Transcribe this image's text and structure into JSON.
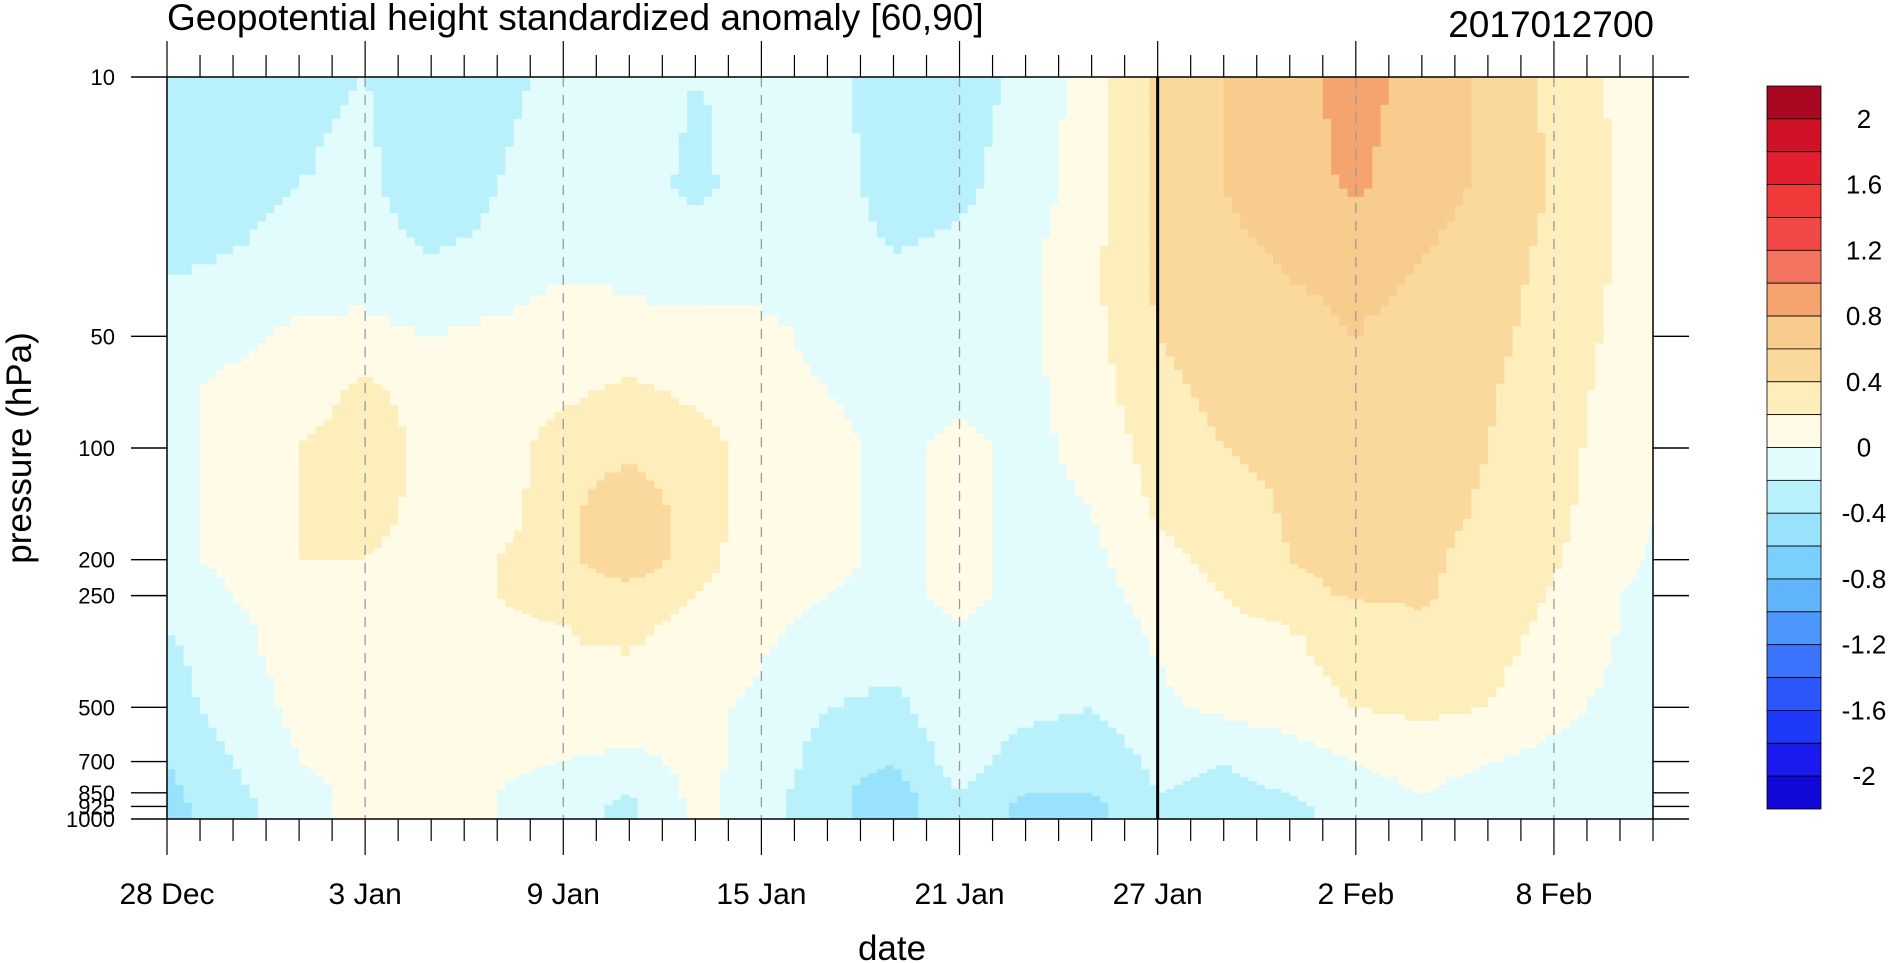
{
  "chart_data": {
    "type": "heatmap",
    "subtype": "filled-contour time-pressure cross-section",
    "title": "Geopotential height standardized anomaly [60,90]",
    "title_right": "2017012700",
    "xlabel": "date",
    "ylabel": "pressure (hPa)",
    "x_ticks": [
      "28 Dec",
      "3 Jan",
      "9 Jan",
      "15 Jan",
      "21 Jan",
      "27 Jan",
      "2 Feb",
      "8 Feb"
    ],
    "x_tick_days": [
      0,
      6,
      12,
      18,
      24,
      30,
      36,
      42
    ],
    "x_range_days": [
      0,
      45
    ],
    "y_ticks": [
      "10",
      "50",
      "100",
      "200",
      "250",
      "500",
      "700",
      "850",
      "925",
      "1000"
    ],
    "y_tick_values": [
      10,
      50,
      100,
      200,
      250,
      500,
      700,
      850,
      925,
      1000
    ],
    "y_range": [
      1000,
      10
    ],
    "y_scale": "log",
    "y_inverted": true,
    "vertical_marker_date": "27 Jan",
    "vertical_marker_day": 30,
    "colorbar": {
      "levels": [
        -2.2,
        -2.0,
        -1.8,
        -1.6,
        -1.4,
        -1.2,
        -1.0,
        -0.8,
        -0.6,
        -0.4,
        -0.2,
        0.0,
        0.2,
        0.4,
        0.6,
        0.8,
        1.0,
        1.2,
        1.4,
        1.6,
        1.8,
        2.0,
        2.2
      ],
      "labels": [
        "2",
        "1.6",
        "1.2",
        "0.8",
        "0.4",
        "0",
        "-0.4",
        "-0.8",
        "-1.2",
        "-1.6",
        "-2"
      ],
      "label_values": [
        2.0,
        1.6,
        1.2,
        0.8,
        0.4,
        0.0,
        -0.4,
        -0.8,
        -1.2,
        -1.6,
        -2.0
      ],
      "colors": [
        "#1208d8",
        "#1a1af0",
        "#1e3af8",
        "#2c55fa",
        "#3a74fc",
        "#4c96fc",
        "#5fb4fa",
        "#78d0fb",
        "#98e2fb",
        "#b8f0fc",
        "#e2fbfc",
        "#fffbe6",
        "#fdeebc",
        "#fbd99c",
        "#f8cc8c",
        "#f6a46e",
        "#f3745e",
        "#f34848",
        "#f23a3a",
        "#e31e2e",
        "#d01226",
        "#a80822"
      ]
    },
    "x_days": [
      0,
      2,
      4,
      6,
      8,
      10,
      12,
      14,
      16,
      18,
      20,
      22,
      24,
      26,
      28,
      30,
      32,
      34,
      36,
      38,
      40,
      42,
      44,
      45
    ],
    "y_pressure": [
      10,
      20,
      30,
      50,
      70,
      100,
      150,
      200,
      250,
      300,
      500,
      700,
      850,
      925,
      1000
    ],
    "z": [
      [
        -0.35,
        -0.3,
        -0.25,
        -0.2,
        -0.3,
        -0.25,
        -0.15,
        -0.1,
        -0.2,
        -0.15,
        -0.15,
        -0.3,
        -0.3,
        -0.15,
        0.1,
        0.45,
        0.6,
        0.75,
        0.85,
        0.75,
        0.55,
        0.35,
        0.15,
        0.05
      ],
      [
        -0.3,
        -0.25,
        -0.2,
        -0.15,
        -0.35,
        -0.2,
        -0.1,
        -0.1,
        -0.25,
        -0.1,
        -0.1,
        -0.3,
        -0.25,
        -0.1,
        0.1,
        0.45,
        0.6,
        0.75,
        0.82,
        0.72,
        0.55,
        0.38,
        0.18,
        0.05
      ],
      [
        -0.25,
        -0.2,
        -0.15,
        -0.1,
        -0.2,
        -0.15,
        -0.05,
        -0.05,
        -0.1,
        -0.1,
        -0.05,
        -0.2,
        -0.15,
        -0.05,
        0.15,
        0.45,
        0.55,
        0.62,
        0.65,
        0.6,
        0.5,
        0.35,
        0.18,
        0.05
      ],
      [
        -0.1,
        -0.05,
        0.05,
        0.05,
        0.0,
        0.05,
        0.1,
        0.05,
        0.05,
        0.05,
        -0.05,
        -0.1,
        -0.1,
        -0.05,
        0.15,
        0.4,
        0.48,
        0.55,
        0.6,
        0.55,
        0.45,
        0.32,
        0.15,
        0.05
      ],
      [
        -0.05,
        0.05,
        0.1,
        0.25,
        0.1,
        0.05,
        0.15,
        0.25,
        0.15,
        0.05,
        0.0,
        -0.05,
        -0.05,
        -0.05,
        0.1,
        0.35,
        0.45,
        0.5,
        0.55,
        0.5,
        0.42,
        0.3,
        0.12,
        0.03
      ],
      [
        -0.05,
        0.05,
        0.2,
        0.3,
        0.15,
        0.1,
        0.3,
        0.35,
        0.3,
        0.1,
        0.05,
        -0.05,
        0.05,
        -0.05,
        0.05,
        0.3,
        0.4,
        0.45,
        0.5,
        0.48,
        0.4,
        0.28,
        0.1,
        0.02
      ],
      [
        -0.05,
        0.05,
        0.2,
        0.25,
        0.15,
        0.1,
        0.35,
        0.55,
        0.3,
        0.1,
        0.05,
        -0.05,
        0.05,
        -0.05,
        0.0,
        0.22,
        0.3,
        0.42,
        0.48,
        0.45,
        0.38,
        0.25,
        0.08,
        0.0
      ],
      [
        -0.05,
        0.05,
        0.2,
        0.2,
        0.15,
        0.2,
        0.35,
        0.55,
        0.3,
        0.05,
        0.05,
        -0.05,
        0.05,
        -0.05,
        -0.05,
        0.15,
        0.25,
        0.4,
        0.45,
        0.43,
        0.35,
        0.22,
        0.05,
        -0.02
      ],
      [
        -0.15,
        0.0,
        0.15,
        0.15,
        0.05,
        0.2,
        0.3,
        0.3,
        0.2,
        0.05,
        0.0,
        -0.05,
        0.05,
        -0.05,
        -0.1,
        0.1,
        0.2,
        0.35,
        0.42,
        0.42,
        0.33,
        0.18,
        0.0,
        -0.05
      ],
      [
        -0.2,
        -0.05,
        0.1,
        0.1,
        0.05,
        0.15,
        0.2,
        0.25,
        0.15,
        0.05,
        -0.05,
        -0.1,
        0.0,
        -0.1,
        -0.15,
        0.05,
        0.15,
        0.2,
        0.3,
        0.38,
        0.3,
        0.15,
        0.0,
        -0.05
      ],
      [
        -0.3,
        -0.1,
        0.05,
        0.05,
        0.05,
        0.1,
        0.15,
        0.1,
        0.05,
        -0.05,
        -0.2,
        -0.25,
        -0.05,
        -0.15,
        -0.2,
        -0.05,
        0.05,
        0.1,
        0.2,
        0.25,
        0.2,
        0.05,
        -0.05,
        -0.1
      ],
      [
        -0.4,
        -0.2,
        0.0,
        0.05,
        0.1,
        0.05,
        0.0,
        -0.05,
        0.05,
        -0.05,
        -0.3,
        -0.4,
        -0.1,
        -0.3,
        -0.35,
        -0.15,
        -0.2,
        -0.1,
        0.0,
        0.05,
        0.0,
        -0.05,
        -0.1,
        -0.1
      ],
      [
        -0.45,
        -0.25,
        -0.05,
        0.05,
        0.1,
        0.0,
        -0.1,
        -0.2,
        0.05,
        -0.1,
        -0.35,
        -0.5,
        -0.2,
        -0.4,
        -0.4,
        -0.2,
        -0.25,
        -0.2,
        -0.05,
        0.0,
        -0.05,
        -0.1,
        -0.1,
        -0.1
      ],
      [
        -0.45,
        -0.3,
        -0.05,
        0.05,
        0.1,
        0.0,
        -0.1,
        -0.25,
        0.05,
        -0.1,
        -0.35,
        -0.5,
        -0.25,
        -0.45,
        -0.45,
        -0.25,
        -0.28,
        -0.25,
        -0.1,
        0.0,
        -0.05,
        -0.1,
        -0.1,
        -0.1
      ],
      [
        -0.45,
        -0.3,
        -0.05,
        0.05,
        0.1,
        0.0,
        -0.1,
        -0.25,
        0.05,
        -0.1,
        -0.35,
        -0.5,
        -0.25,
        -0.45,
        -0.45,
        -0.25,
        -0.3,
        -0.25,
        -0.1,
        0.0,
        -0.05,
        -0.1,
        -0.1,
        -0.1
      ]
    ]
  }
}
